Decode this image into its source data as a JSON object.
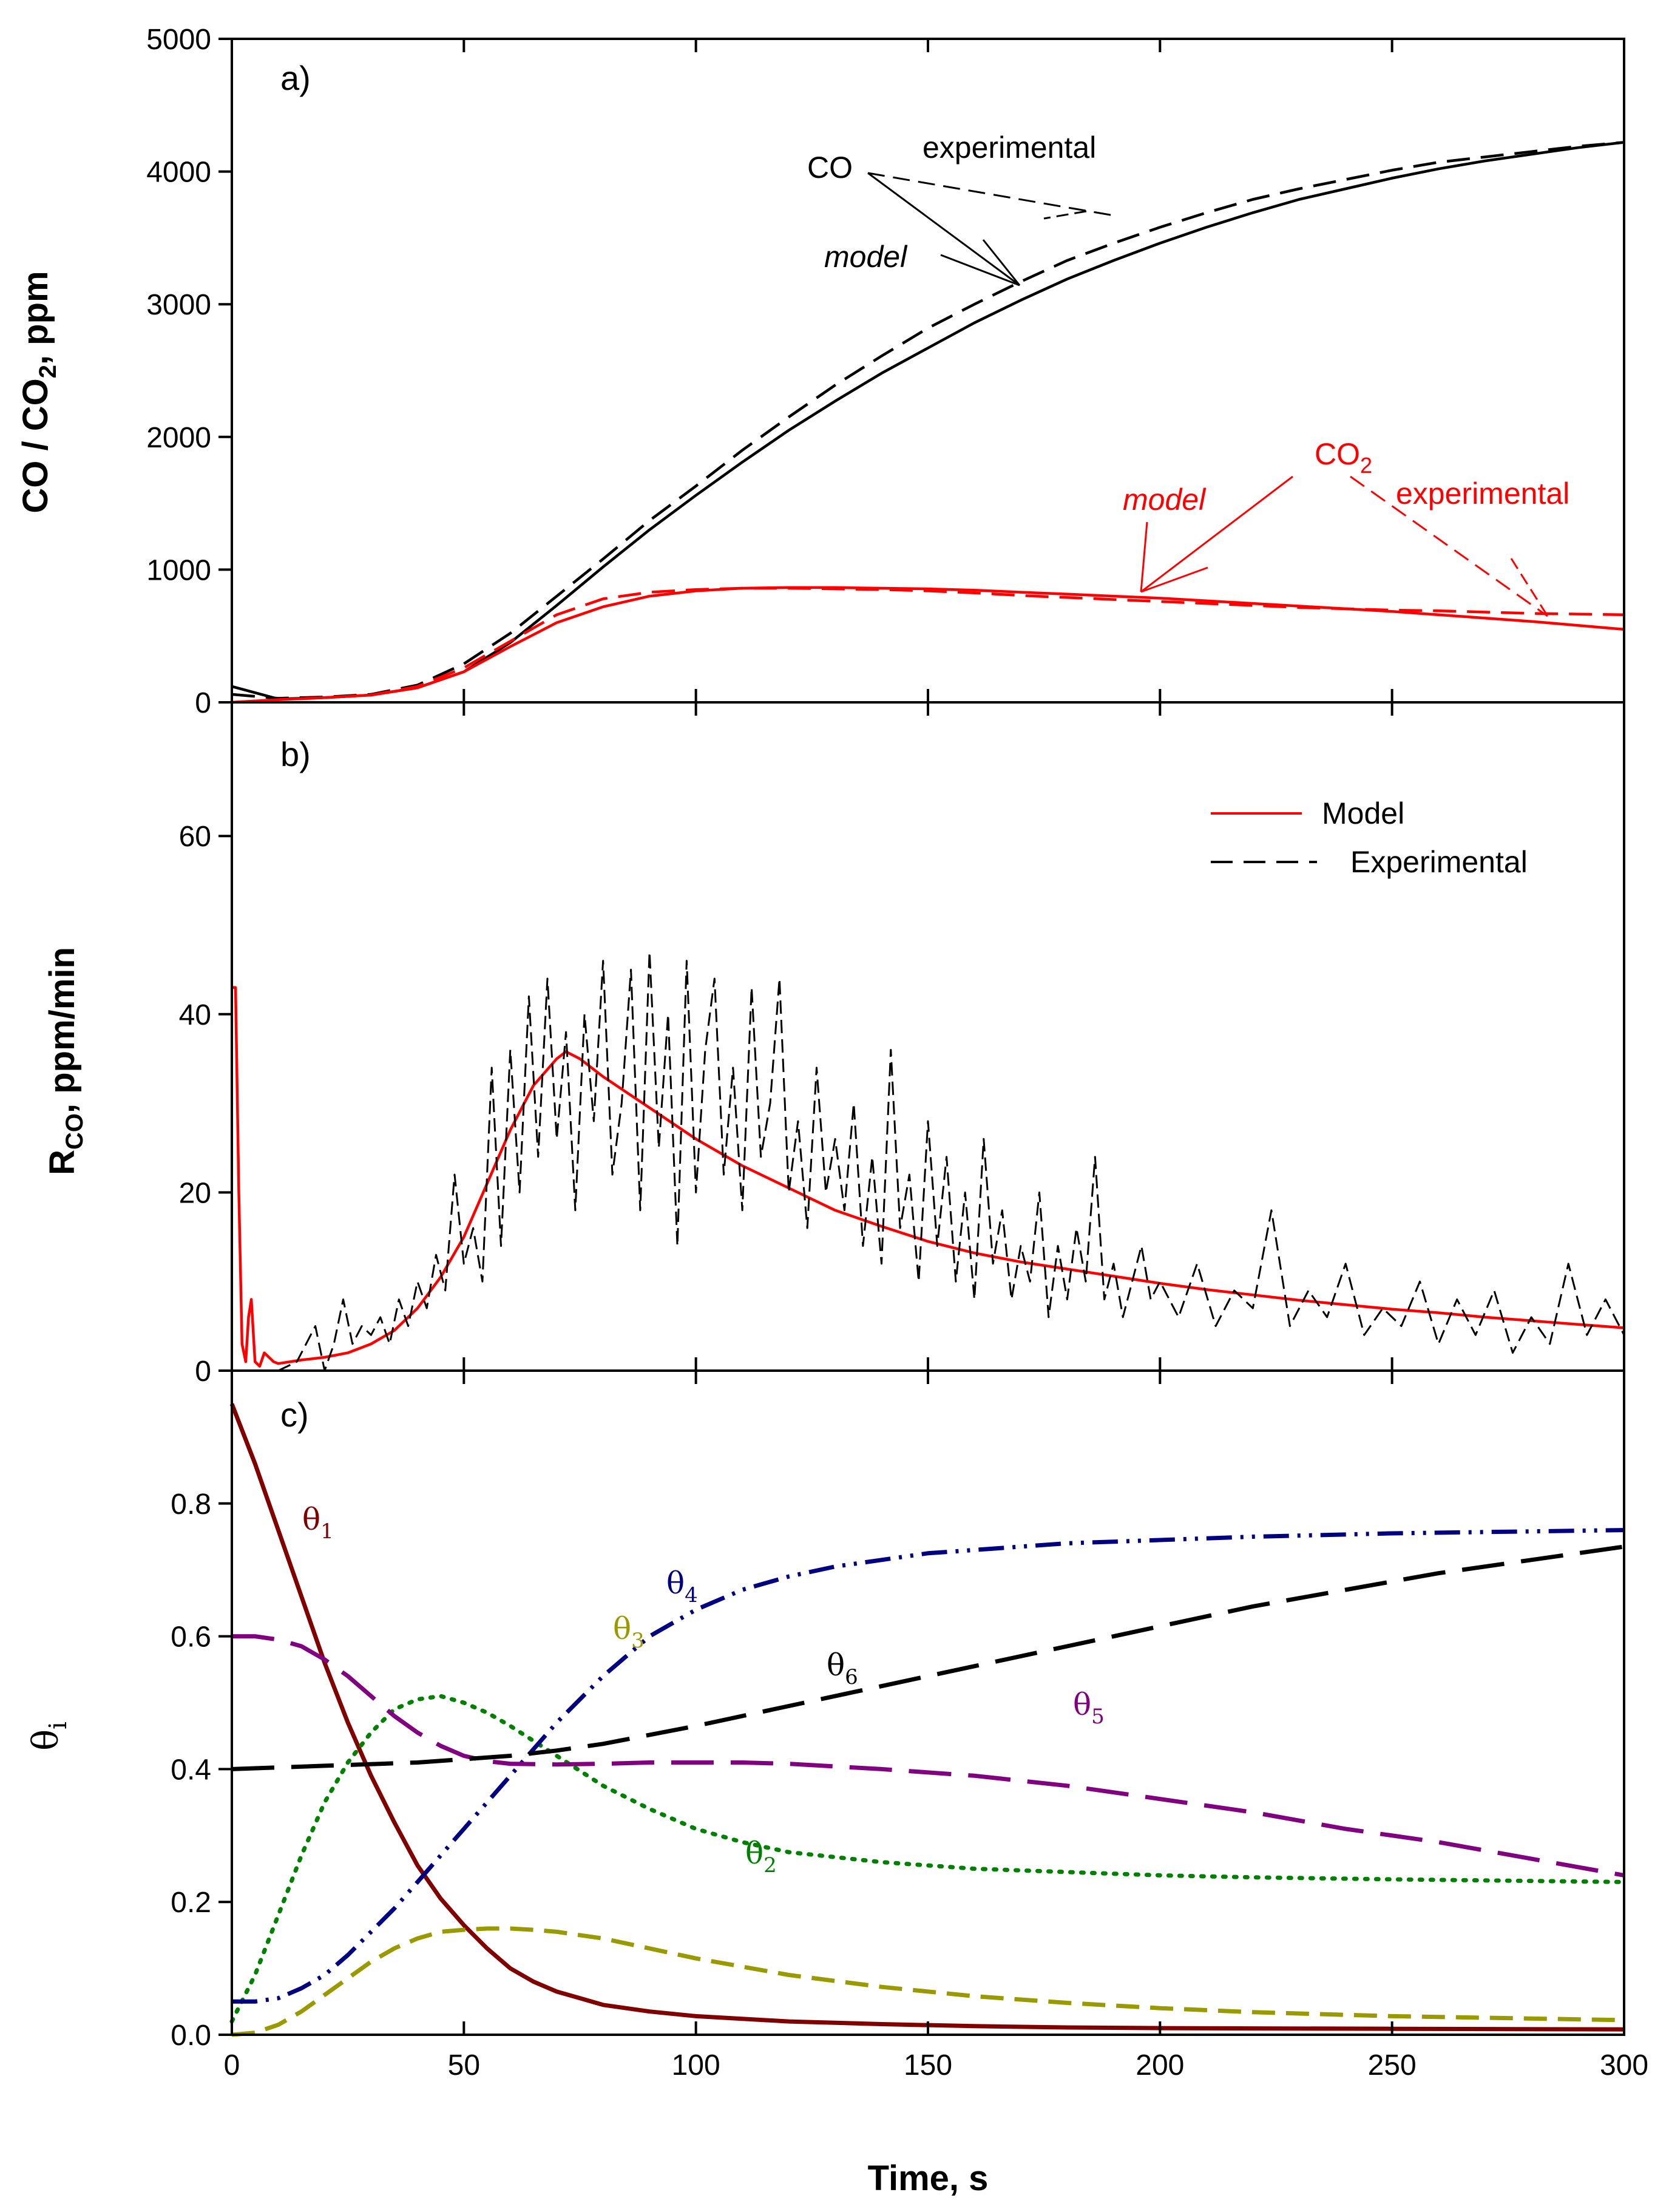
{
  "chart_data": [
    {
      "panel": "a)",
      "type": "line",
      "ylabel_main": "CO / CO",
      "ylabel_sub": "2",
      "ylabel_tail": ", ppm",
      "xlim": [
        0,
        300
      ],
      "ylim": [
        0,
        5000
      ],
      "yticks": [
        0,
        1000,
        2000,
        3000,
        4000,
        5000
      ],
      "xticks": [
        0,
        50,
        100,
        150,
        200,
        250,
        300
      ],
      "annotations": {
        "co_label": "CO",
        "co_experimental": "experimental",
        "co_model": "model",
        "co2_label": "CO",
        "co2_sub": "2",
        "co2_model": "model",
        "co2_experimental": "experimental"
      },
      "series": [
        {
          "name": "CO model",
          "color": "#000000",
          "dash": "solid",
          "x": [
            0,
            10,
            20,
            30,
            40,
            50,
            60,
            70,
            80,
            90,
            100,
            110,
            120,
            130,
            140,
            150,
            160,
            170,
            180,
            190,
            200,
            210,
            220,
            230,
            240,
            250,
            260,
            270,
            280,
            290,
            300
          ],
          "y": [
            120,
            25,
            35,
            55,
            110,
            230,
            450,
            730,
            1020,
            1300,
            1560,
            1810,
            2050,
            2270,
            2480,
            2670,
            2860,
            3030,
            3190,
            3330,
            3460,
            3580,
            3690,
            3790,
            3870,
            3950,
            4020,
            4080,
            4130,
            4180,
            4220
          ]
        },
        {
          "name": "CO experimental",
          "color": "#000000",
          "dash": "dashed",
          "x": [
            0,
            10,
            20,
            30,
            40,
            50,
            60,
            70,
            80,
            90,
            100,
            110,
            120,
            130,
            140,
            150,
            160,
            170,
            180,
            190,
            200,
            210,
            220,
            230,
            240,
            250,
            260,
            270,
            280,
            290,
            300
          ],
          "y": [
            60,
            30,
            40,
            60,
            130,
            290,
            520,
            800,
            1080,
            1370,
            1630,
            1900,
            2150,
            2390,
            2610,
            2820,
            3000,
            3170,
            3330,
            3460,
            3580,
            3690,
            3790,
            3870,
            3940,
            4010,
            4070,
            4110,
            4150,
            4190,
            4220
          ]
        },
        {
          "name": "CO2 model",
          "color": "#ff0000",
          "dash": "solid",
          "x": [
            0,
            10,
            20,
            30,
            40,
            50,
            60,
            70,
            80,
            90,
            100,
            110,
            120,
            130,
            140,
            150,
            160,
            170,
            180,
            190,
            200,
            210,
            220,
            230,
            240,
            250,
            260,
            270,
            280,
            290,
            300
          ],
          "y": [
            0,
            20,
            35,
            55,
            110,
            230,
            420,
            600,
            720,
            800,
            840,
            860,
            865,
            865,
            860,
            855,
            845,
            830,
            815,
            800,
            785,
            765,
            745,
            725,
            705,
            685,
            660,
            635,
            610,
            580,
            550
          ]
        },
        {
          "name": "CO2 experimental",
          "color": "#ff0000",
          "dash": "dashed",
          "x": [
            0,
            10,
            20,
            30,
            40,
            50,
            60,
            70,
            80,
            90,
            100,
            110,
            120,
            130,
            140,
            150,
            160,
            170,
            180,
            190,
            200,
            210,
            220,
            230,
            240,
            250,
            260,
            270,
            280,
            290,
            300
          ],
          "y": [
            0,
            20,
            35,
            55,
            120,
            260,
            460,
            660,
            780,
            830,
            850,
            860,
            860,
            855,
            850,
            840,
            825,
            805,
            790,
            775,
            760,
            745,
            730,
            715,
            705,
            695,
            690,
            680,
            670,
            665,
            660
          ]
        }
      ]
    },
    {
      "panel": "b)",
      "type": "line",
      "ylabel_main": "R",
      "ylabel_sub": "CO",
      "ylabel_tail": ", ppm/min",
      "xlim": [
        0,
        300
      ],
      "ylim": [
        0,
        75
      ],
      "yticks": [
        0,
        20,
        40,
        60
      ],
      "xticks": [
        0,
        50,
        100,
        150,
        200,
        250,
        300
      ],
      "legend": [
        {
          "label": "Model",
          "color": "#ff0000",
          "dash": "solid"
        },
        {
          "label": "Experimental",
          "color": "#000000",
          "dash": "dashed"
        }
      ],
      "series": [
        {
          "name": "Model",
          "color": "#ff0000",
          "dash": "solid",
          "x": [
            0,
            0.8,
            1.5,
            2.2,
            3,
            3.6,
            4.2,
            5,
            6,
            7,
            8,
            9,
            10,
            15,
            20,
            25,
            30,
            35,
            40,
            45,
            50,
            55,
            60,
            65,
            70,
            72,
            75,
            80,
            90,
            100,
            110,
            120,
            130,
            140,
            150,
            160,
            170,
            180,
            190,
            200,
            210,
            220,
            230,
            240,
            250,
            260,
            270,
            280,
            290,
            300
          ],
          "y": [
            43,
            43,
            20,
            3,
            1,
            6,
            8,
            1,
            0.5,
            2,
            1.5,
            1,
            0.8,
            1.2,
            1.5,
            2,
            3,
            4.5,
            7,
            10.5,
            15,
            21,
            27,
            32,
            35,
            35.8,
            35,
            33,
            29.5,
            26,
            23,
            20.5,
            18,
            16.2,
            14.5,
            13.2,
            12.2,
            11.4,
            10.6,
            9.8,
            9.1,
            8.5,
            7.9,
            7.4,
            6.9,
            6.5,
            6,
            5.6,
            5.2,
            4.8
          ]
        },
        {
          "name": "Experimental",
          "color": "#000000",
          "dash": "dashed",
          "x": [
            10,
            14,
            18,
            20,
            22,
            24,
            26,
            28,
            30,
            32,
            34,
            36,
            38,
            40,
            42,
            44,
            46,
            48,
            50,
            52,
            54,
            56,
            58,
            60,
            62,
            64,
            66,
            68,
            70,
            72,
            74,
            76,
            78,
            80,
            82,
            84,
            86,
            88,
            90,
            92,
            94,
            96,
            98,
            100,
            102,
            104,
            106,
            108,
            110,
            112,
            114,
            116,
            118,
            120,
            122,
            124,
            126,
            128,
            130,
            132,
            134,
            136,
            138,
            140,
            142,
            144,
            146,
            148,
            150,
            152,
            154,
            156,
            158,
            160,
            162,
            164,
            166,
            168,
            170,
            172,
            174,
            176,
            178,
            180,
            182,
            184,
            186,
            188,
            190,
            192,
            194,
            196,
            198,
            200,
            204,
            208,
            212,
            216,
            220,
            224,
            228,
            232,
            236,
            240,
            244,
            248,
            252,
            256,
            260,
            264,
            268,
            272,
            276,
            280,
            284,
            288,
            292,
            296,
            300
          ],
          "y": [
            0,
            1,
            5,
            0,
            3,
            8,
            3,
            5,
            4,
            6,
            3,
            8,
            5,
            10,
            7,
            13,
            9,
            22,
            12,
            16,
            10,
            34,
            14,
            36,
            20,
            42,
            24,
            44,
            26,
            38,
            18,
            40,
            28,
            46,
            22,
            30,
            45,
            18,
            47,
            25,
            40,
            14,
            46,
            20,
            36,
            44,
            22,
            34,
            18,
            43,
            24,
            30,
            44,
            20,
            28,
            16,
            34,
            20,
            26,
            18,
            30,
            14,
            24,
            12,
            36,
            16,
            22,
            10,
            28,
            14,
            24,
            10,
            20,
            8,
            26,
            12,
            18,
            8,
            14,
            10,
            20,
            6,
            14,
            8,
            16,
            10,
            24,
            8,
            12,
            6,
            10,
            14,
            8,
            10,
            6,
            12,
            5,
            9,
            7,
            18,
            5,
            9,
            6,
            12,
            4,
            7,
            5,
            10,
            3,
            8,
            4,
            9,
            2,
            6,
            3,
            12,
            4,
            8,
            4
          ]
        }
      ]
    },
    {
      "panel": "c)",
      "type": "line",
      "ylabel_main": "θ",
      "ylabel_sub": "i",
      "xlabel": "Time, s",
      "xlim": [
        0,
        300
      ],
      "ylim": [
        0,
        1.0
      ],
      "yticks": [
        0.0,
        0.2,
        0.4,
        0.6,
        0.8
      ],
      "ytick_labels": [
        "0.0",
        "0.2",
        "0.4",
        "0.6",
        "0.8"
      ],
      "xticks": [
        0,
        50,
        100,
        150,
        200,
        250,
        300
      ],
      "series": [
        {
          "name": "θ1",
          "sub": "1",
          "color": "#800000",
          "dash": "solid",
          "x": [
            0,
            5,
            10,
            15,
            20,
            25,
            30,
            35,
            40,
            45,
            50,
            55,
            60,
            65,
            70,
            75,
            80,
            90,
            100,
            120,
            140,
            160,
            180,
            200,
            250,
            300
          ],
          "y": [
            0.95,
            0.86,
            0.76,
            0.66,
            0.56,
            0.47,
            0.39,
            0.32,
            0.255,
            0.205,
            0.165,
            0.13,
            0.1,
            0.08,
            0.065,
            0.055,
            0.045,
            0.035,
            0.028,
            0.02,
            0.016,
            0.013,
            0.011,
            0.01,
            0.009,
            0.008
          ]
        },
        {
          "name": "θ2",
          "sub": "2",
          "color": "#008000",
          "dash": "dotted",
          "x": [
            0,
            5,
            10,
            15,
            20,
            25,
            30,
            35,
            40,
            45,
            50,
            55,
            60,
            70,
            80,
            90,
            100,
            110,
            120,
            140,
            160,
            180,
            200,
            220,
            250,
            300
          ],
          "y": [
            0.02,
            0.09,
            0.18,
            0.27,
            0.35,
            0.41,
            0.455,
            0.49,
            0.505,
            0.51,
            0.5,
            0.485,
            0.465,
            0.42,
            0.375,
            0.34,
            0.31,
            0.29,
            0.275,
            0.26,
            0.25,
            0.245,
            0.24,
            0.237,
            0.234,
            0.23
          ]
        },
        {
          "name": "θ3",
          "sub": "3",
          "color": "#999900",
          "dash": "dashed",
          "x": [
            0,
            5,
            10,
            15,
            20,
            25,
            30,
            35,
            40,
            45,
            50,
            55,
            60,
            65,
            70,
            80,
            90,
            100,
            120,
            140,
            160,
            180,
            200,
            220,
            250,
            300
          ],
          "y": [
            0.0,
            0.003,
            0.015,
            0.035,
            0.06,
            0.085,
            0.11,
            0.13,
            0.145,
            0.155,
            0.158,
            0.16,
            0.16,
            0.158,
            0.155,
            0.145,
            0.13,
            0.115,
            0.09,
            0.072,
            0.058,
            0.048,
            0.04,
            0.034,
            0.028,
            0.022
          ]
        },
        {
          "name": "θ4",
          "sub": "4",
          "color": "#000080",
          "dash": "dashdotdot",
          "x": [
            0,
            5,
            10,
            15,
            20,
            25,
            30,
            35,
            40,
            45,
            50,
            55,
            60,
            65,
            70,
            80,
            90,
            100,
            110,
            120,
            130,
            140,
            150,
            160,
            180,
            200,
            220,
            250,
            300
          ],
          "y": [
            0.05,
            0.05,
            0.055,
            0.07,
            0.09,
            0.12,
            0.155,
            0.19,
            0.23,
            0.27,
            0.31,
            0.35,
            0.39,
            0.43,
            0.47,
            0.54,
            0.6,
            0.64,
            0.67,
            0.69,
            0.705,
            0.715,
            0.725,
            0.73,
            0.74,
            0.745,
            0.75,
            0.755,
            0.76
          ]
        },
        {
          "name": "θ5",
          "sub": "5",
          "color": "#800080",
          "dash": "longdash",
          "x": [
            0,
            5,
            10,
            15,
            20,
            25,
            30,
            35,
            40,
            45,
            50,
            55,
            60,
            70,
            80,
            90,
            100,
            110,
            120,
            140,
            160,
            180,
            200,
            220,
            240,
            260,
            280,
            300
          ],
          "y": [
            0.6,
            0.6,
            0.595,
            0.585,
            0.565,
            0.54,
            0.51,
            0.48,
            0.455,
            0.435,
            0.42,
            0.412,
            0.408,
            0.407,
            0.408,
            0.41,
            0.41,
            0.41,
            0.408,
            0.4,
            0.39,
            0.375,
            0.355,
            0.335,
            0.31,
            0.29,
            0.265,
            0.24
          ]
        },
        {
          "name": "θ6",
          "sub": "6",
          "color": "#000000",
          "dash": "longdash",
          "x": [
            0,
            20,
            40,
            50,
            60,
            70,
            80,
            100,
            120,
            140,
            160,
            180,
            200,
            220,
            240,
            260,
            280,
            300
          ],
          "y": [
            0.4,
            0.405,
            0.41,
            0.415,
            0.42,
            0.428,
            0.438,
            0.465,
            0.495,
            0.525,
            0.555,
            0.585,
            0.615,
            0.645,
            0.67,
            0.695,
            0.715,
            0.735
          ]
        }
      ],
      "labels": [
        {
          "text": "θ",
          "sub": "1",
          "color": "#800000"
        },
        {
          "text": "θ",
          "sub": "2",
          "color": "#008000"
        },
        {
          "text": "θ",
          "sub": "3",
          "color": "#999900"
        },
        {
          "text": "θ",
          "sub": "4",
          "color": "#000080"
        },
        {
          "text": "θ",
          "sub": "5",
          "color": "#800080"
        },
        {
          "text": "θ",
          "sub": "6",
          "color": "#000000"
        }
      ]
    }
  ]
}
